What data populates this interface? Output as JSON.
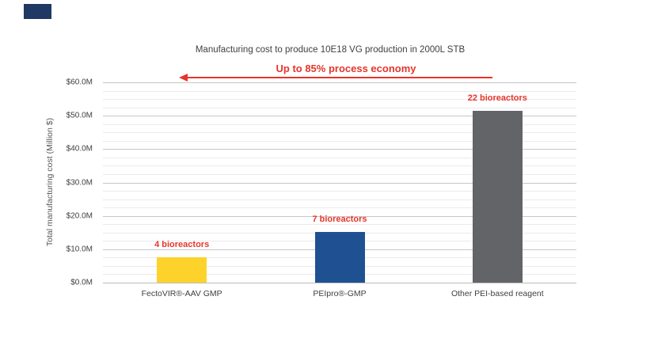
{
  "slide": {
    "accent_block_color": "#1f3864",
    "background_color": "#ffffff"
  },
  "colors": {
    "red": "#e6352b",
    "title_gray": "#3f3f3f",
    "axis_title_gray": "#595959",
    "major_gridline": "#c6c6c6",
    "minor_gridline": "#ebebeb",
    "axis_line": "#bdbdbd"
  },
  "chart_data": {
    "type": "bar",
    "title": "Manufacturing cost to produce 10E18 VG production in 2000L STB",
    "annotation": {
      "text": "Up to 85% process economy",
      "color": "#e6352b",
      "arrow_direction": "left"
    },
    "categories": [
      "FectoVIR®-AAV GMP",
      "PEIpro®-GMP",
      "Other PEI-based reagent"
    ],
    "values": [
      7.7,
      15.1,
      51.5
    ],
    "bar_labels": [
      "4 bioreactors",
      "7 bioreactors",
      "22 bioreactors"
    ],
    "bar_colors": [
      "#fdd32b",
      "#1f5192",
      "#626468"
    ],
    "xlabel": "",
    "ylabel": "Total manufacturing cost (Million $)",
    "ylim": [
      0,
      60
    ],
    "ytick_labels": [
      "$0.0M",
      "$10.0M",
      "$20.0M",
      "$30.0M",
      "$40.0M",
      "$50.0M",
      "$60.0M"
    ],
    "major_grid_step": 10,
    "minor_grid_step": 2.5,
    "grid": true,
    "legend_position": "none"
  }
}
